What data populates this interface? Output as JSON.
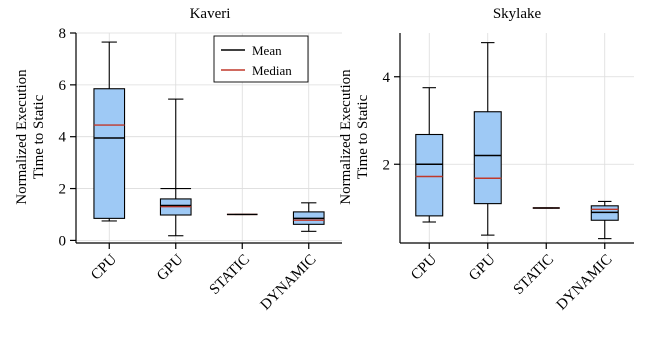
{
  "chart_data": [
    {
      "type": "box",
      "title": "Kaveri",
      "ylabel_lines": [
        "Normalized Execution",
        "Time to Static"
      ],
      "categories": [
        "CPU",
        "GPU",
        "STATIC",
        "DYNAMIC"
      ],
      "ylim": [
        -0.1,
        8.0
      ],
      "yticks": [
        0,
        2,
        4,
        6,
        8
      ],
      "grid": true,
      "legend": {
        "position": "top-right",
        "entries": [
          {
            "label": "Mean",
            "color": "#000000"
          },
          {
            "label": "Median",
            "color": "#c0392b"
          }
        ]
      },
      "boxes": [
        {
          "category": "CPU",
          "whisker_low": 0.75,
          "q1": 0.85,
          "median": 4.45,
          "mean": 3.95,
          "q3": 5.85,
          "whisker_high": 7.65
        },
        {
          "category": "GPU",
          "whisker_low": 0.18,
          "q1": 0.98,
          "median": 1.3,
          "mean": 1.35,
          "q3": 1.6,
          "whisker_high": 5.45,
          "cap_mid": 2.0
        },
        {
          "category": "STATIC",
          "whisker_low": 1.0,
          "q1": 1.0,
          "median": 1.0,
          "mean": 1.0,
          "q3": 1.0,
          "whisker_high": 1.0
        },
        {
          "category": "DYNAMIC",
          "whisker_low": 0.35,
          "q1": 0.62,
          "median": 0.78,
          "mean": 0.85,
          "q3": 1.1,
          "whisker_high": 1.45
        }
      ]
    },
    {
      "type": "box",
      "title": "Skylake",
      "ylabel_lines": [
        "Normalized Execution",
        "Time to Static"
      ],
      "categories": [
        "CPU",
        "GPU",
        "STATIC",
        "DYNAMIC"
      ],
      "ylim": [
        0.2,
        5.0
      ],
      "yticks": [
        2,
        4
      ],
      "grid": true,
      "boxes": [
        {
          "category": "CPU",
          "whisker_low": 0.68,
          "q1": 0.82,
          "median": 1.72,
          "mean": 2.0,
          "q3": 2.68,
          "whisker_high": 3.75
        },
        {
          "category": "GPU",
          "whisker_low": 0.38,
          "q1": 1.1,
          "median": 1.68,
          "mean": 2.2,
          "q3": 3.2,
          "whisker_high": 4.78
        },
        {
          "category": "STATIC",
          "whisker_low": 1.0,
          "q1": 1.0,
          "median": 1.0,
          "mean": 1.0,
          "q3": 1.0,
          "whisker_high": 1.0
        },
        {
          "category": "DYNAMIC",
          "whisker_low": 0.3,
          "q1": 0.72,
          "median": 0.97,
          "mean": 0.9,
          "q3": 1.05,
          "whisker_high": 1.15
        }
      ]
    }
  ],
  "colors": {
    "box_fill": "#9ec9f5",
    "box_edge": "#000000",
    "mean_line": "#000000",
    "median_line": "#c0392b",
    "grid": "#dcdcdc"
  }
}
